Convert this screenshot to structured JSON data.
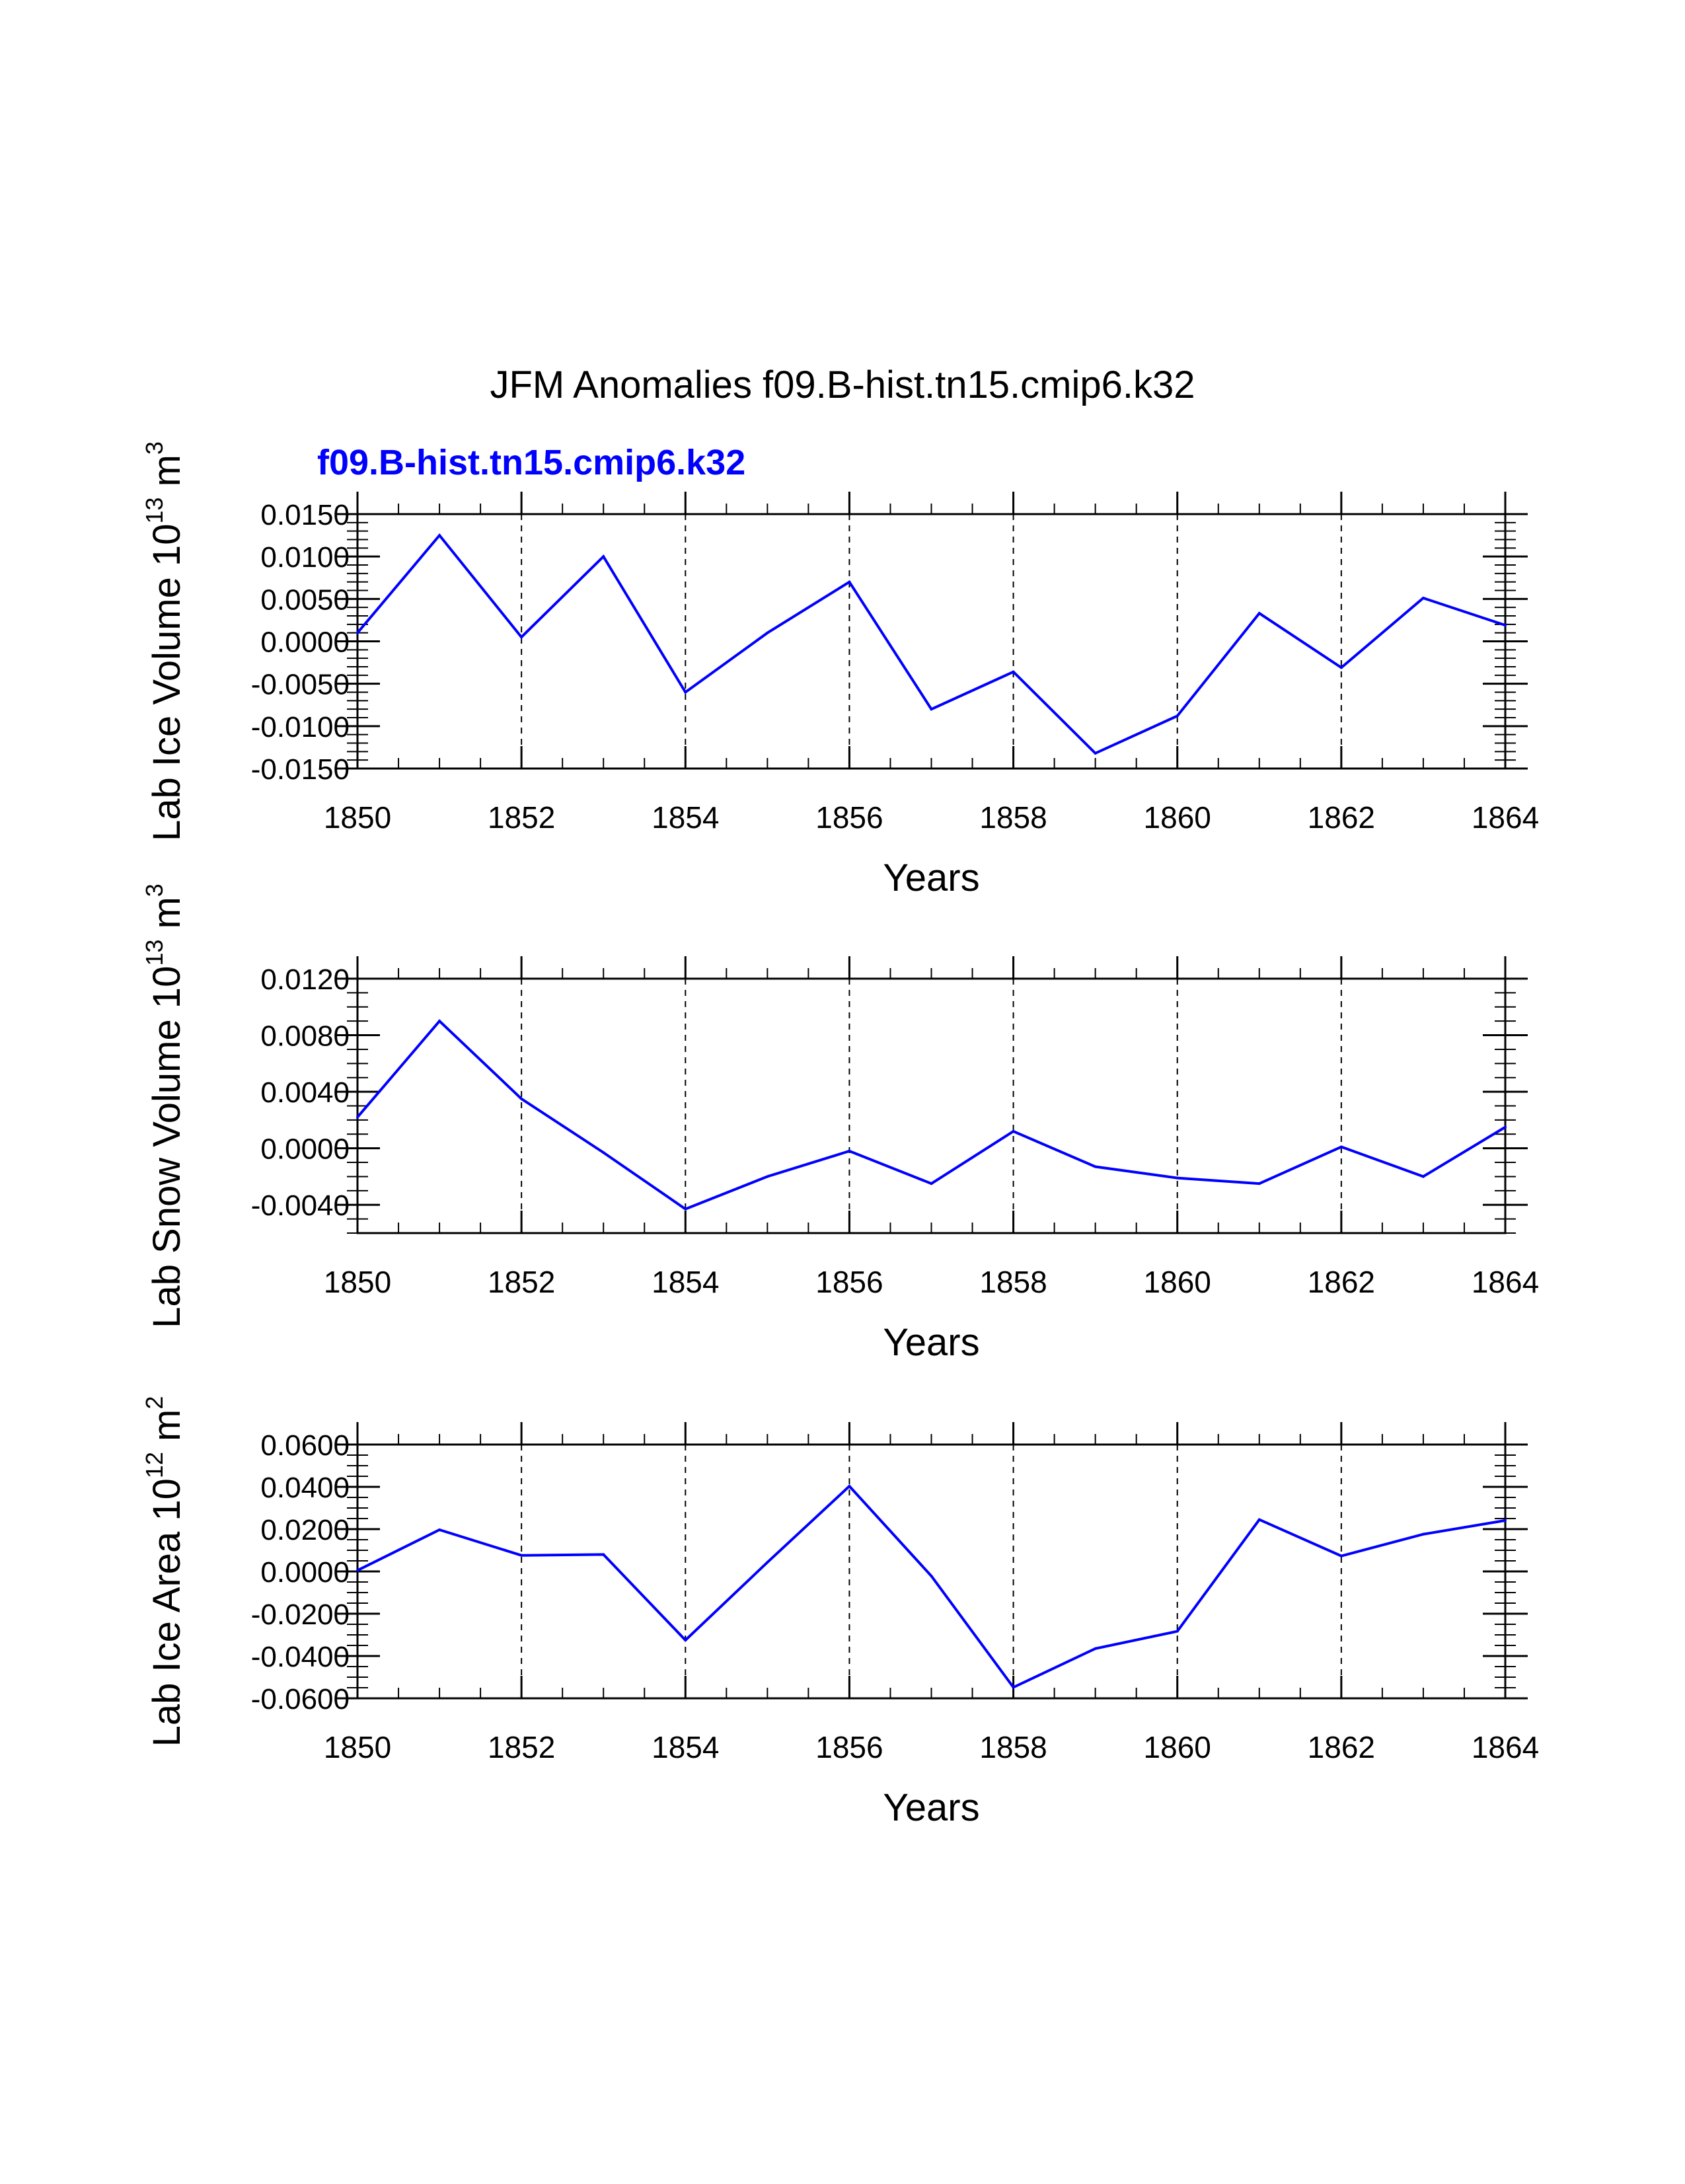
{
  "title": "JFM Anomalies f09.B-hist.tn15.cmip6.k32",
  "case_label": "f09.B-hist.tn15.cmip6.k32",
  "colors": {
    "line": "#0000ff",
    "case_label": "#0000ff",
    "axis": "#000000"
  },
  "chart_data": [
    {
      "type": "line",
      "name": "lab-ice-volume",
      "ylabel": "Lab Ice Volume",
      "ylabel_unit": {
        "base": "10",
        "exp": "13",
        "unit": "m",
        "unit_exp": "3"
      },
      "xlabel": "Years",
      "xlim": [
        1850,
        1864
      ],
      "xticks": [
        1850,
        1852,
        1854,
        1856,
        1858,
        1860,
        1862,
        1864
      ],
      "ylim": [
        -0.015,
        0.015
      ],
      "yticks": [
        -0.015,
        -0.01,
        -0.005,
        0.0,
        0.005,
        0.01,
        0.015
      ],
      "ytick_labels": [
        "-0.0150",
        "-0.0100",
        "-0.0050",
        "0.0000",
        "0.0050",
        "0.0100",
        "0.0150"
      ],
      "yminor": 0.001,
      "x": [
        1850,
        1851,
        1852,
        1853,
        1854,
        1855,
        1856,
        1857,
        1858,
        1859,
        1860,
        1861,
        1862,
        1863,
        1864
      ],
      "values": [
        0.001,
        0.0125,
        0.0005,
        0.01,
        -0.006,
        0.001,
        0.007,
        -0.008,
        -0.0036,
        -0.0132,
        -0.0088,
        0.0033,
        -0.0031,
        0.0051,
        0.0019
      ]
    },
    {
      "type": "line",
      "name": "lab-snow-volume",
      "ylabel": "Lab Snow Volume",
      "ylabel_unit": {
        "base": "10",
        "exp": "13",
        "unit": "m",
        "unit_exp": "3"
      },
      "xlabel": "Years",
      "xlim": [
        1850,
        1864
      ],
      "xticks": [
        1850,
        1852,
        1854,
        1856,
        1858,
        1860,
        1862,
        1864
      ],
      "ylim": [
        -0.006,
        0.012
      ],
      "yticks": [
        -0.004,
        0.0,
        0.004,
        0.008,
        0.012
      ],
      "ytick_labels": [
        "-0.0040",
        "0.0000",
        "0.0040",
        "0.0080",
        "0.0120"
      ],
      "yminor": 0.001,
      "x": [
        1850,
        1851,
        1852,
        1853,
        1854,
        1855,
        1856,
        1857,
        1858,
        1859,
        1860,
        1861,
        1862,
        1863,
        1864
      ],
      "values": [
        0.0022,
        0.009,
        0.0035,
        -0.0003,
        -0.0043,
        -0.002,
        -0.0002,
        -0.0025,
        0.0012,
        -0.0013,
        -0.0021,
        -0.0025,
        0.0001,
        -0.002,
        0.0015
      ]
    },
    {
      "type": "line",
      "name": "lab-ice-area",
      "ylabel": "Lab Ice Area",
      "ylabel_unit": {
        "base": "10",
        "exp": "12",
        "unit": "m",
        "unit_exp": "2"
      },
      "xlabel": "Years",
      "xlim": [
        1850,
        1864
      ],
      "xticks": [
        1850,
        1852,
        1854,
        1856,
        1858,
        1860,
        1862,
        1864
      ],
      "ylim": [
        -0.06,
        0.06
      ],
      "yticks": [
        -0.06,
        -0.04,
        -0.02,
        0.0,
        0.02,
        0.04,
        0.06
      ],
      "ytick_labels": [
        "-0.0600",
        "-0.0400",
        "-0.0200",
        "0.0000",
        "0.0200",
        "0.0400",
        "0.0600"
      ],
      "yminor": 0.005,
      "x": [
        1850,
        1851,
        1852,
        1853,
        1854,
        1855,
        1856,
        1857,
        1858,
        1859,
        1860,
        1861,
        1862,
        1863,
        1864
      ],
      "values": [
        0.0005,
        0.0197,
        0.0076,
        0.008,
        -0.0325,
        0.0043,
        0.0403,
        -0.0022,
        -0.0548,
        -0.0365,
        -0.0283,
        0.0245,
        0.0073,
        0.0176,
        0.0241
      ]
    }
  ]
}
